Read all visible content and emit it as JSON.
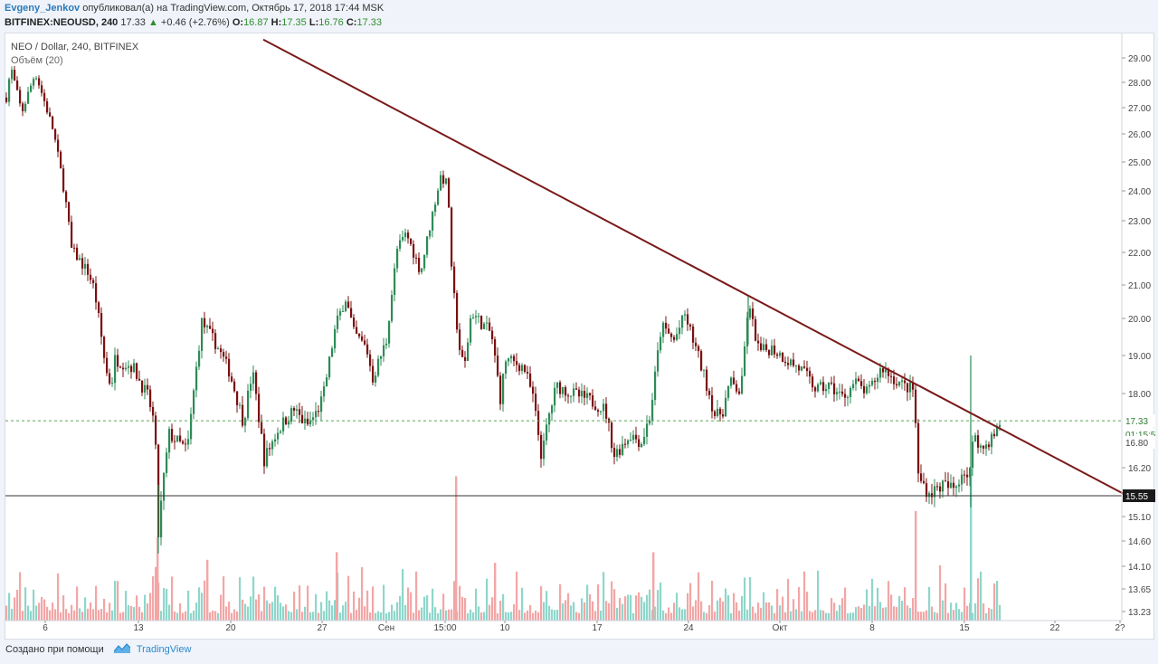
{
  "header": {
    "author": "Evgeny_Jenkov",
    "published_text": "опубликовал(а) на TradingView.com, Октябрь 17, 2018 17:44 MSK",
    "symbol": "BITFINEX:NEOUSD, 240",
    "last": "17.33",
    "change": "+0.46 (+2.76%)",
    "o_label": "O:",
    "o_value": "16.87",
    "h_label": "H:",
    "h_value": "17.35",
    "l_label": "L:",
    "l_value": "16.76",
    "c_label": "C:",
    "c_value": "17.33"
  },
  "legend": {
    "title": "NEO / Dollar, 240, BITFINEX",
    "volume": "Объём (20)"
  },
  "footer": {
    "created_with": "Создано при помощи",
    "brand": "TradingView"
  },
  "colors": {
    "up": "#2e8b57",
    "down": "#7a1010",
    "vol_up": "#8fd6cb",
    "vol_down": "#f3a6a6",
    "trendline": "#7a1a1a",
    "support": "#333333",
    "last_price_line": "#5aa55a"
  },
  "chart_data": {
    "type": "candlestick",
    "y_axis_labels": [
      "29.00",
      "28.00",
      "27.00",
      "26.00",
      "25.00",
      "24.00",
      "23.00",
      "22.00",
      "21.00",
      "20.00",
      "19.00",
      "18.00",
      "16.80",
      "16.20",
      "15.10",
      "14.60",
      "14.10",
      "13.65",
      "13.23"
    ],
    "x_axis_labels": [
      "6",
      "13",
      "20",
      "27",
      "Сен",
      "15:00",
      "10",
      "17",
      "24",
      "Окт",
      "8",
      "15",
      "22",
      "2?"
    ],
    "price_labels": {
      "last": "17.33",
      "countdown": "01:15:5",
      "current": "16.80",
      "support": "15.55"
    },
    "support_level": 15.55,
    "last_price": 17.33,
    "price_keypoints": [
      {
        "t": 0,
        "p": 27.4
      },
      {
        "t": 5,
        "p": 28.6
      },
      {
        "t": 17,
        "p": 26.8
      },
      {
        "t": 32,
        "p": 28.4
      },
      {
        "t": 52,
        "p": 26.1
      },
      {
        "t": 65,
        "p": 23.8
      },
      {
        "t": 72,
        "p": 22.1
      },
      {
        "t": 90,
        "p": 21.4
      },
      {
        "t": 97,
        "p": 20.9
      },
      {
        "t": 110,
        "p": 18.6
      },
      {
        "t": 116,
        "p": 18.2
      },
      {
        "t": 120,
        "p": 18.9
      },
      {
        "t": 140,
        "p": 18.7
      },
      {
        "t": 150,
        "p": 18.2
      },
      {
        "t": 157,
        "p": 17.9
      },
      {
        "t": 164,
        "p": 17.2
      },
      {
        "t": 168,
        "p": 14.7
      },
      {
        "t": 173,
        "p": 15.8
      },
      {
        "t": 180,
        "p": 17.0
      },
      {
        "t": 200,
        "p": 16.6
      },
      {
        "t": 216,
        "p": 19.9
      },
      {
        "t": 232,
        "p": 19.3
      },
      {
        "t": 246,
        "p": 18.6
      },
      {
        "t": 262,
        "p": 17.3
      },
      {
        "t": 272,
        "p": 18.6
      },
      {
        "t": 285,
        "p": 16.4
      },
      {
        "t": 300,
        "p": 17.1
      },
      {
        "t": 310,
        "p": 17.4
      },
      {
        "t": 318,
        "p": 17.6
      },
      {
        "t": 332,
        "p": 17.2
      },
      {
        "t": 342,
        "p": 17.5
      },
      {
        "t": 350,
        "p": 17.9
      },
      {
        "t": 364,
        "p": 19.8
      },
      {
        "t": 375,
        "p": 20.6
      },
      {
        "t": 384,
        "p": 19.6
      },
      {
        "t": 398,
        "p": 19.2
      },
      {
        "t": 405,
        "p": 18.4
      },
      {
        "t": 420,
        "p": 19.4
      },
      {
        "t": 432,
        "p": 22.1
      },
      {
        "t": 442,
        "p": 22.6
      },
      {
        "t": 458,
        "p": 21.4
      },
      {
        "t": 470,
        "p": 23.1
      },
      {
        "t": 480,
        "p": 24.5
      },
      {
        "t": 488,
        "p": 24.2
      },
      {
        "t": 492,
        "p": 21.4
      },
      {
        "t": 500,
        "p": 19.3
      },
      {
        "t": 506,
        "p": 18.6
      },
      {
        "t": 514,
        "p": 20.2
      },
      {
        "t": 524,
        "p": 19.9
      },
      {
        "t": 536,
        "p": 19.6
      },
      {
        "t": 546,
        "p": 17.9
      },
      {
        "t": 552,
        "p": 18.9
      },
      {
        "t": 572,
        "p": 18.7
      },
      {
        "t": 582,
        "p": 17.9
      },
      {
        "t": 592,
        "p": 16.4
      },
      {
        "t": 598,
        "p": 17.3
      },
      {
        "t": 608,
        "p": 18.2
      },
      {
        "t": 626,
        "p": 18.0
      },
      {
        "t": 648,
        "p": 17.8
      },
      {
        "t": 662,
        "p": 17.6
      },
      {
        "t": 672,
        "p": 16.5
      },
      {
        "t": 690,
        "p": 17.0
      },
      {
        "t": 702,
        "p": 16.8
      },
      {
        "t": 712,
        "p": 17.5
      },
      {
        "t": 724,
        "p": 19.8
      },
      {
        "t": 738,
        "p": 19.4
      },
      {
        "t": 750,
        "p": 20.1
      },
      {
        "t": 762,
        "p": 19.2
      },
      {
        "t": 772,
        "p": 18.4
      },
      {
        "t": 784,
        "p": 17.4
      },
      {
        "t": 792,
        "p": 17.6
      },
      {
        "t": 800,
        "p": 18.3
      },
      {
        "t": 812,
        "p": 18.0
      },
      {
        "t": 820,
        "p": 20.4
      },
      {
        "t": 832,
        "p": 19.1
      },
      {
        "t": 846,
        "p": 19.2
      },
      {
        "t": 862,
        "p": 18.9
      },
      {
        "t": 880,
        "p": 18.6
      },
      {
        "t": 895,
        "p": 18.1
      },
      {
        "t": 910,
        "p": 18.2
      },
      {
        "t": 925,
        "p": 17.9
      },
      {
        "t": 938,
        "p": 18.3
      },
      {
        "t": 952,
        "p": 18.0
      },
      {
        "t": 968,
        "p": 18.7
      },
      {
        "t": 980,
        "p": 18.4
      },
      {
        "t": 992,
        "p": 18.2
      },
      {
        "t": 1003,
        "p": 18.1
      },
      {
        "t": 1008,
        "p": 16.0
      },
      {
        "t": 1020,
        "p": 15.6
      },
      {
        "t": 1034,
        "p": 15.8
      },
      {
        "t": 1048,
        "p": 15.7
      },
      {
        "t": 1058,
        "p": 16.2
      },
      {
        "t": 1064,
        "p": 15.9
      },
      {
        "t": 1070,
        "p": 17.1
      },
      {
        "t": 1078,
        "p": 16.6
      },
      {
        "t": 1088,
        "p": 16.9
      },
      {
        "t": 1094,
        "p": 17.0
      },
      {
        "t": 1099,
        "p": 17.33
      }
    ],
    "spikes": [
      {
        "t": 1066,
        "high": 19.0,
        "low": 15.3
      },
      {
        "t": 168,
        "high": 15.8,
        "low": 14.3
      },
      {
        "t": 820,
        "high": 20.7,
        "low": 19.3
      }
    ],
    "volume_spikes": [
      {
        "t": 497,
        "rel": 0.95
      },
      {
        "t": 1066,
        "rel": 1.0
      },
      {
        "t": 1005,
        "rel": 0.72
      },
      {
        "t": 167,
        "rel": 0.55
      },
      {
        "t": 365,
        "rel": 0.45
      },
      {
        "t": 715,
        "rel": 0.45
      },
      {
        "t": 222,
        "rel": 0.4
      },
      {
        "t": 540,
        "rel": 0.38
      }
    ],
    "trendline": [
      {
        "t": 285,
        "p": 29.75
      },
      {
        "t": 1240,
        "p": 15.55
      }
    ],
    "title": "NEO / Dollar, 240, BITFINEX"
  }
}
